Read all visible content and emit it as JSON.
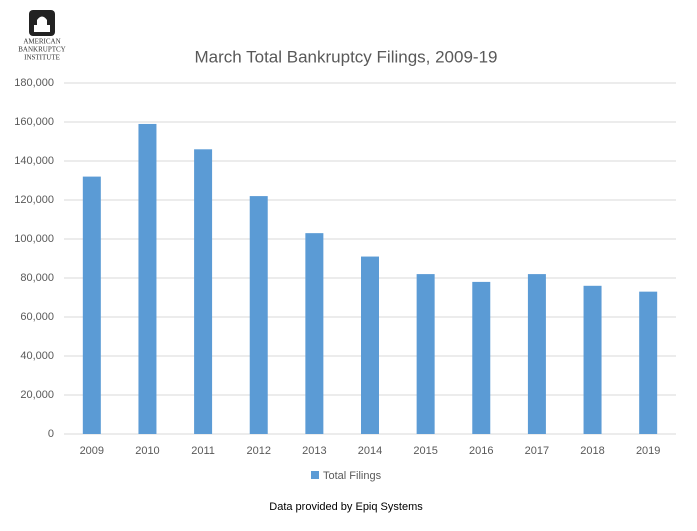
{
  "logo": {
    "lines": [
      "American",
      "Bankruptcy",
      "Institute"
    ]
  },
  "chart_data": {
    "type": "bar",
    "title": "March Total Bankruptcy Filings, 2009-19",
    "categories": [
      "2009",
      "2010",
      "2011",
      "2012",
      "2013",
      "2014",
      "2015",
      "2016",
      "2017",
      "2018",
      "2019"
    ],
    "series": [
      {
        "name": "Total Filings",
        "color": "#5b9bd5",
        "values": [
          132000,
          159000,
          146000,
          122000,
          103000,
          91000,
          82000,
          78000,
          82000,
          76000,
          73000
        ]
      }
    ],
    "ylim": [
      0,
      180000
    ],
    "yticks": [
      0,
      {
        "value": 20000,
        "label": "20,000"
      },
      {
        "value": 40000,
        "label": "40,000"
      },
      {
        "value": 60000,
        "label": "60,000"
      },
      {
        "value": 80000,
        "label": "80,000"
      },
      {
        "value": 100000,
        "label": "100,000"
      },
      {
        "value": 120000,
        "label": "120,000"
      },
      {
        "value": 140000,
        "label": "140,000"
      },
      {
        "value": 160000,
        "label": "160,000"
      },
      {
        "value": 180000,
        "label": "180,000"
      }
    ],
    "grid": true,
    "legend": "bottom",
    "source": "Data provided by Epiq Systems"
  }
}
